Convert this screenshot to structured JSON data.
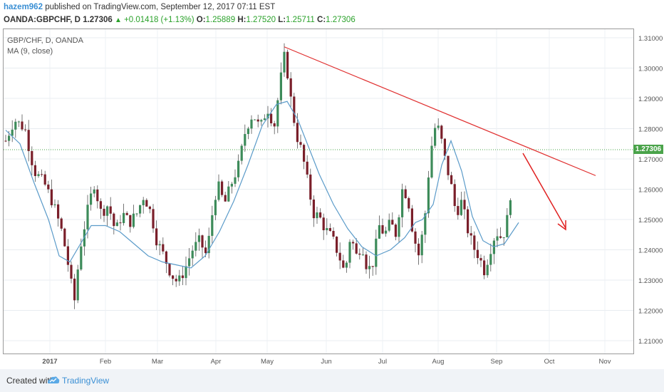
{
  "header": {
    "author": "hazem962",
    "published_text": "published on TradingView.com, September 12, 2017 07:11 EST",
    "symbol": "OANDA:GBPCHF, D",
    "last": "1.27306",
    "change": "+0.01418 (+1.13%)",
    "open_label": "O:",
    "open": "1.25889",
    "high_label": "H:",
    "high": "1.27520",
    "low_label": "L:",
    "low": "1.25711",
    "close_label": "C:",
    "close": "1.27306"
  },
  "legend": {
    "series_label": "GBP/CHF, D, OANDA",
    "indicator_label": "MA (9, close)"
  },
  "footer": {
    "created_with": "Created with",
    "brand": "TradingView"
  },
  "chart_data": {
    "type": "candlestick",
    "y_ticks": [
      "1.31000",
      "1.30000",
      "1.29000",
      "1.28000",
      "1.27000",
      "1.26000",
      "1.25000",
      "1.24000",
      "1.23000",
      "1.22000",
      "1.21000"
    ],
    "x_ticks": [
      "2017",
      "Feb",
      "Mar",
      "Apr",
      "May",
      "Jun",
      "Jul",
      "Aug",
      "Sep",
      "Oct",
      "Nov"
    ],
    "ylim": [
      1.205,
      1.313
    ],
    "last_price_label": "1.27306",
    "colors": {
      "up": "#3d8b5a",
      "down": "#7a1f2a",
      "ma": "#5b9bc9",
      "trendline": "#e03030",
      "arrow": "#e02020",
      "last_line": "#4aa34a"
    },
    "moving_average": [
      [
        0,
        1.2795
      ],
      [
        20,
        1.275
      ],
      [
        40,
        1.262
      ],
      [
        60,
        1.25
      ],
      [
        75,
        1.238
      ],
      [
        90,
        1.236
      ],
      [
        105,
        1.242
      ],
      [
        120,
        1.248
      ],
      [
        140,
        1.248
      ],
      [
        160,
        1.246
      ],
      [
        180,
        1.242
      ],
      [
        200,
        1.238
      ],
      [
        220,
        1.236
      ],
      [
        240,
        1.235
      ],
      [
        260,
        1.234
      ],
      [
        280,
        1.238
      ],
      [
        300,
        1.246
      ],
      [
        320,
        1.256
      ],
      [
        340,
        1.268
      ],
      [
        360,
        1.281
      ],
      [
        380,
        1.288
      ],
      [
        395,
        1.289
      ],
      [
        410,
        1.283
      ],
      [
        420,
        1.277
      ],
      [
        440,
        1.265
      ],
      [
        460,
        1.255
      ],
      [
        480,
        1.247
      ],
      [
        500,
        1.241
      ],
      [
        520,
        1.238
      ],
      [
        540,
        1.24
      ],
      [
        560,
        1.244
      ],
      [
        575,
        1.249
      ],
      [
        585,
        1.25
      ],
      [
        600,
        1.255
      ],
      [
        612,
        1.268
      ],
      [
        625,
        1.276
      ],
      [
        640,
        1.266
      ],
      [
        655,
        1.251
      ],
      [
        670,
        1.243
      ],
      [
        685,
        1.241
      ],
      [
        700,
        1.242
      ],
      [
        720,
        1.249
      ]
    ],
    "trendline": [
      [
        1.307,
        "May 10"
      ],
      [
        1.2645,
        "Nov end"
      ]
    ],
    "annotation_arrow": "down"
  }
}
